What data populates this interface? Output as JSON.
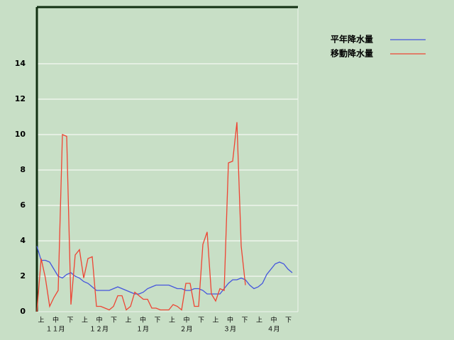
{
  "chart_data": {
    "type": "line",
    "x_tick_labels": [
      "上",
      "中",
      "下",
      "上",
      "中",
      "下",
      "上",
      "中",
      "下",
      "上",
      "中",
      "下",
      "上",
      "中",
      "下",
      "上",
      "中",
      "下"
    ],
    "month_labels": [
      "１１月",
      "１２月",
      "１月",
      "２月",
      "３月",
      "４月"
    ],
    "series": [
      {
        "name": "平年降水量",
        "color": "#4455dd",
        "values": [
          3.7,
          2.9,
          2.9,
          2.8,
          2.4,
          2.0,
          1.9,
          2.1,
          2.2,
          2.0,
          1.9,
          1.7,
          1.6,
          1.4,
          1.2,
          1.2,
          1.2,
          1.2,
          1.3,
          1.4,
          1.3,
          1.2,
          1.1,
          1.0,
          1.0,
          1.1,
          1.3,
          1.4,
          1.5,
          1.5,
          1.5,
          1.5,
          1.4,
          1.3,
          1.3,
          1.2,
          1.2,
          1.3,
          1.3,
          1.2,
          1.0,
          1.0,
          1.0,
          1.0,
          1.3,
          1.6,
          1.8,
          1.8,
          1.9,
          1.8,
          1.5,
          1.3,
          1.4,
          1.6,
          2.1,
          2.4,
          2.7,
          2.8,
          2.7,
          2.4,
          2.2
        ]
      },
      {
        "name": "移動降水量",
        "color": "#ee4433",
        "values": [
          0,
          3.0,
          1.9,
          0.3,
          0.8,
          1.2,
          10.0,
          9.9,
          0.4,
          3.2,
          3.5,
          1.9,
          3.0,
          3.1,
          0.3,
          0.3,
          0.2,
          0.1,
          0.3,
          0.9,
          0.9,
          0.1,
          0.3,
          1.1,
          0.9,
          0.7,
          0.7,
          0.2,
          0.2,
          0.1,
          0.1,
          0.1,
          0.4,
          0.3,
          0.1,
          1.6,
          1.6,
          0.3,
          0.3,
          3.8,
          4.5,
          1.0,
          0.6,
          1.3,
          1.2,
          8.4,
          8.5,
          10.7,
          3.7,
          1.5,
          null,
          null,
          null,
          null,
          null,
          null,
          null,
          null,
          null,
          null,
          null
        ]
      }
    ],
    "ylim": [
      0,
      17.2
    ],
    "yticks": [
      0,
      2,
      4,
      6,
      8,
      10,
      12,
      14
    ],
    "grid": true
  }
}
